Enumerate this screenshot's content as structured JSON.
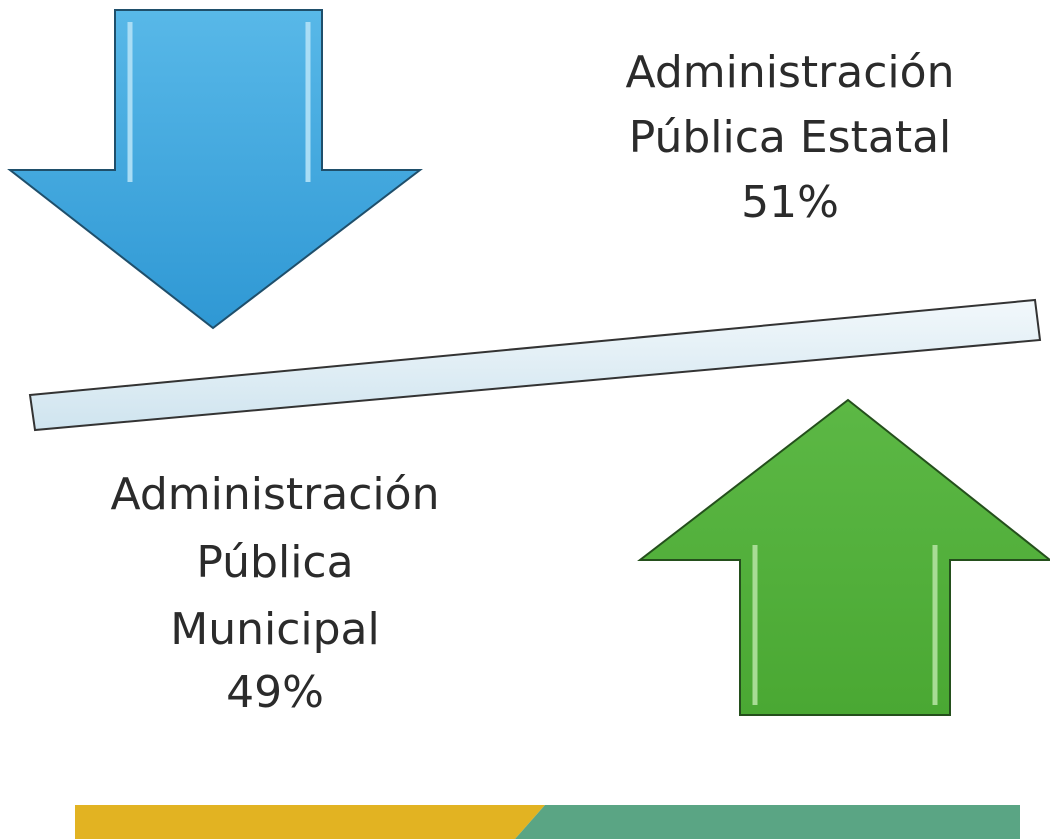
{
  "state": {
    "lines": [
      "Administración",
      "Pública Estatal"
    ],
    "percent": "51%"
  },
  "municipal": {
    "lines": [
      "Administración",
      "Pública",
      "Municipal"
    ],
    "percent": "49%"
  }
}
